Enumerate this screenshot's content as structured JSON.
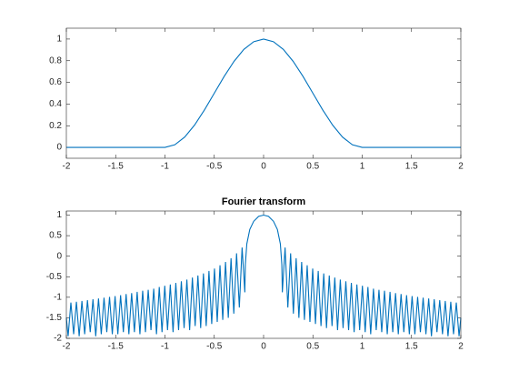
{
  "chart_data": [
    {
      "type": "line",
      "series": [
        {
          "color": "#0072bd",
          "x": [
            -2,
            -1,
            -0.9,
            -0.8,
            -0.7,
            -0.6,
            -0.5,
            -0.4,
            -0.3,
            -0.2,
            -0.1,
            0,
            0.1,
            0.2,
            0.3,
            0.4,
            0.5,
            0.6,
            0.7,
            0.8,
            0.9,
            1,
            2
          ],
          "values": [
            0,
            0,
            0.0245,
            0.0955,
            0.2061,
            0.3455,
            0.5,
            0.6545,
            0.7939,
            0.9045,
            0.9755,
            1,
            0.9755,
            0.9045,
            0.7939,
            0.6545,
            0.5,
            0.3455,
            0.2061,
            0.0955,
            0.0245,
            0,
            0
          ]
        }
      ],
      "xlim": [
        -2,
        2
      ],
      "ylim": [
        -0.1,
        1.1
      ],
      "xticks": [
        -2,
        -1.5,
        -1,
        -0.5,
        0,
        0.5,
        1,
        1.5,
        2
      ],
      "yticks": [
        0,
        0.2,
        0.4,
        0.6,
        0.8,
        1
      ]
    },
    {
      "type": "line",
      "title": "Fourier transform",
      "series": [
        {
          "color": "#0072bd",
          "x": [
            -2,
            -1.982,
            -1.954,
            -1.926,
            -1.898,
            -1.87,
            -1.842,
            -1.814,
            -1.786,
            -1.758,
            -1.73,
            -1.702,
            -1.674,
            -1.646,
            -1.618,
            -1.59,
            -1.562,
            -1.534,
            -1.506,
            -1.478,
            -1.45,
            -1.422,
            -1.394,
            -1.366,
            -1.338,
            -1.31,
            -1.282,
            -1.254,
            -1.226,
            -1.198,
            -1.17,
            -1.142,
            -1.114,
            -1.086,
            -1.058,
            -1.03,
            -1.002,
            -0.974,
            -0.946,
            -0.918,
            -0.89,
            -0.862,
            -0.834,
            -0.806,
            -0.778,
            -0.75,
            -0.722,
            -0.694,
            -0.666,
            -0.638,
            -0.61,
            -0.582,
            -0.554,
            -0.526,
            -0.498,
            -0.47,
            -0.442,
            -0.414,
            -0.386,
            -0.358,
            -0.33,
            -0.302,
            -0.274,
            -0.246,
            -0.218,
            -0.19,
            -0.185,
            -0.17,
            -0.14,
            -0.1,
            -0.05,
            0,
            0.05,
            0.1,
            0.14,
            0.17,
            0.185,
            0.19,
            0.218,
            0.246,
            0.274,
            0.302,
            0.33,
            0.358,
            0.386,
            0.414,
            0.442,
            0.47,
            0.498,
            0.526,
            0.554,
            0.582,
            0.61,
            0.638,
            0.666,
            0.694,
            0.722,
            0.75,
            0.778,
            0.806,
            0.834,
            0.862,
            0.89,
            0.918,
            0.946,
            0.974,
            1.002,
            1.03,
            1.058,
            1.086,
            1.114,
            1.142,
            1.17,
            1.198,
            1.226,
            1.254,
            1.282,
            1.31,
            1.338,
            1.366,
            1.394,
            1.422,
            1.45,
            1.478,
            1.506,
            1.534,
            1.562,
            1.59,
            1.618,
            1.646,
            1.674,
            1.702,
            1.73,
            1.758,
            1.786,
            1.814,
            1.842,
            1.87,
            1.898,
            1.926,
            1.954,
            1.982,
            2
          ],
          "values": [
            -1.5,
            -1.95,
            -1.13,
            -1.9,
            -1.11,
            -1.95,
            -1.09,
            -1.9,
            -1.07,
            -1.85,
            -1.05,
            -1.95,
            -1.03,
            -1.9,
            -1.01,
            -1.85,
            -0.99,
            -1.9,
            -0.97,
            -1.9,
            -0.95,
            -1.85,
            -0.92,
            -1.9,
            -0.9,
            -1.85,
            -0.87,
            -1.9,
            -0.84,
            -1.85,
            -0.82,
            -1.8,
            -0.79,
            -1.9,
            -0.75,
            -1.85,
            -0.72,
            -1.8,
            -0.69,
            -1.85,
            -0.65,
            -1.8,
            -0.61,
            -1.75,
            -0.57,
            -1.8,
            -0.52,
            -1.7,
            -0.47,
            -1.75,
            -0.42,
            -1.7,
            -0.36,
            -1.65,
            -0.3,
            -1.6,
            -0.22,
            -1.55,
            -0.14,
            -1.5,
            -0.05,
            -1.4,
            0.07,
            -1.25,
            0.21,
            -0.88,
            -0.2,
            0.3,
            0.65,
            0.85,
            0.97,
            1,
            0.97,
            0.85,
            0.65,
            0.3,
            -0.2,
            -0.88,
            0.21,
            -1.25,
            0.07,
            -1.4,
            -0.05,
            -1.5,
            -0.14,
            -1.55,
            -0.22,
            -1.6,
            -0.3,
            -1.65,
            -0.36,
            -1.7,
            -0.42,
            -1.75,
            -0.47,
            -1.7,
            -0.52,
            -1.8,
            -0.57,
            -1.75,
            -0.61,
            -1.8,
            -0.65,
            -1.85,
            -0.69,
            -1.8,
            -0.72,
            -1.85,
            -0.75,
            -1.9,
            -0.79,
            -1.8,
            -0.82,
            -1.85,
            -0.84,
            -1.9,
            -0.87,
            -1.85,
            -0.9,
            -1.9,
            -0.92,
            -1.85,
            -0.95,
            -1.9,
            -0.97,
            -1.9,
            -0.99,
            -1.85,
            -1.01,
            -1.9,
            -1.03,
            -1.95,
            -1.05,
            -1.85,
            -1.07,
            -1.9,
            -1.09,
            -1.95,
            -1.11,
            -1.9,
            -1.13,
            -1.95,
            -1.5
          ]
        }
      ],
      "xlim": [
        -2,
        2
      ],
      "ylim": [
        -2,
        1.1
      ],
      "xticks": [
        -2,
        -1.5,
        -1,
        -0.5,
        0,
        0.5,
        1,
        1.5,
        2
      ],
      "yticks": [
        -2,
        -1.5,
        -1,
        -0.5,
        0,
        0.5,
        1
      ]
    }
  ]
}
